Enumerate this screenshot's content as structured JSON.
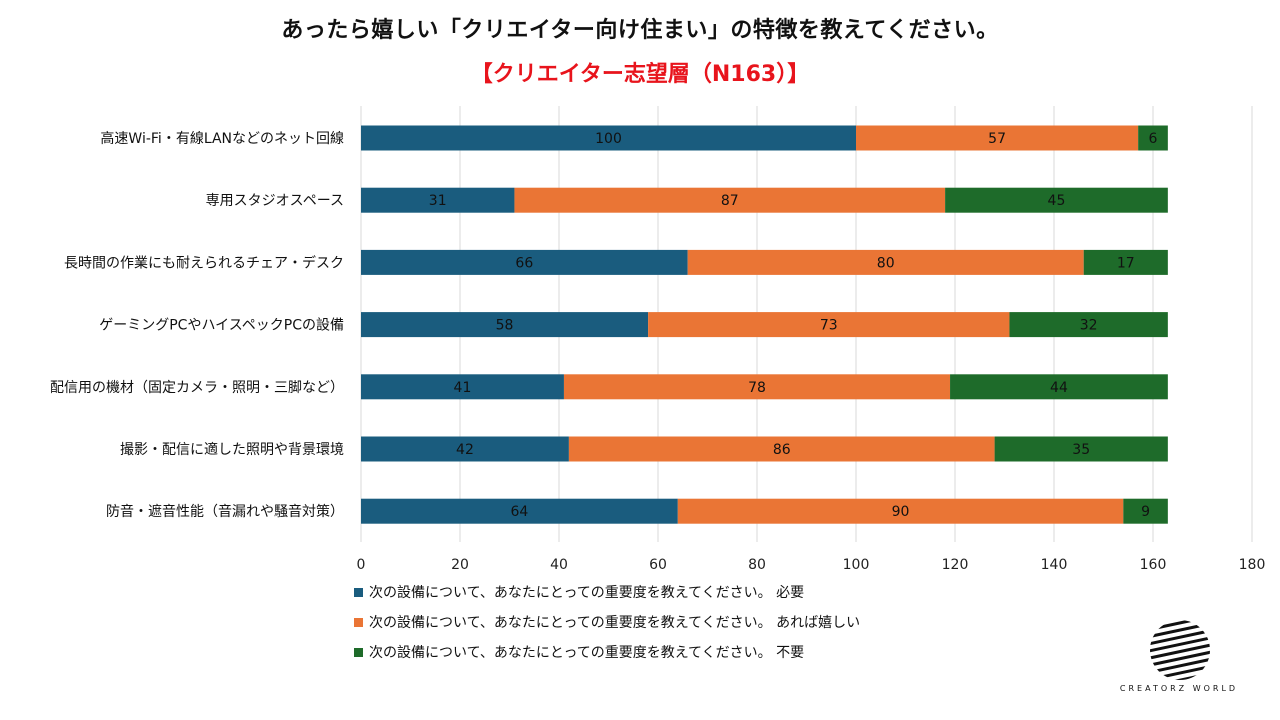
{
  "title": "あったら嬉しい「クリエイター向け住まい」の特徴を教えてください。",
  "subtitle": "【クリエイター志望層（N163）】",
  "colors": {
    "subtitle": "#e8141c",
    "series": [
      "#1a5c7e",
      "#ea7535",
      "#1e6b2a"
    ],
    "grid": "#d9d9d9"
  },
  "chart_data": {
    "type": "bar",
    "orientation": "horizontal",
    "stacked": true,
    "categories": [
      "高速Wi-Fi・有線LANなどのネット回線",
      "専用スタジオスペース",
      "長時間の作業にも耐えられるチェア・デスク",
      "ゲーミングPCやハイスペックPCの設備",
      "配信用の機材（固定カメラ・照明・三脚など）",
      "撮影・配信に適した照明や背景環境",
      "防音・遮音性能（音漏れや騒音対策）"
    ],
    "series": [
      {
        "name": "次の設備について、あなたにとっての重要度を教えてください。 必要",
        "values": [
          100,
          31,
          66,
          58,
          41,
          42,
          64
        ]
      },
      {
        "name": "次の設備について、あなたにとっての重要度を教えてください。 あれば嬉しい",
        "values": [
          57,
          87,
          80,
          73,
          78,
          86,
          90
        ]
      },
      {
        "name": "次の設備について、あなたにとっての重要度を教えてください。 不要",
        "values": [
          6,
          45,
          17,
          32,
          44,
          35,
          9
        ]
      }
    ],
    "xlim": [
      0,
      180
    ],
    "xticks": [
      0,
      20,
      40,
      60,
      80,
      100,
      120,
      140,
      160,
      180
    ],
    "grid": true,
    "legend_position": "bottom"
  },
  "logo": {
    "text": "CREATORZ WORLD",
    "icon": "striped-globe-icon"
  }
}
